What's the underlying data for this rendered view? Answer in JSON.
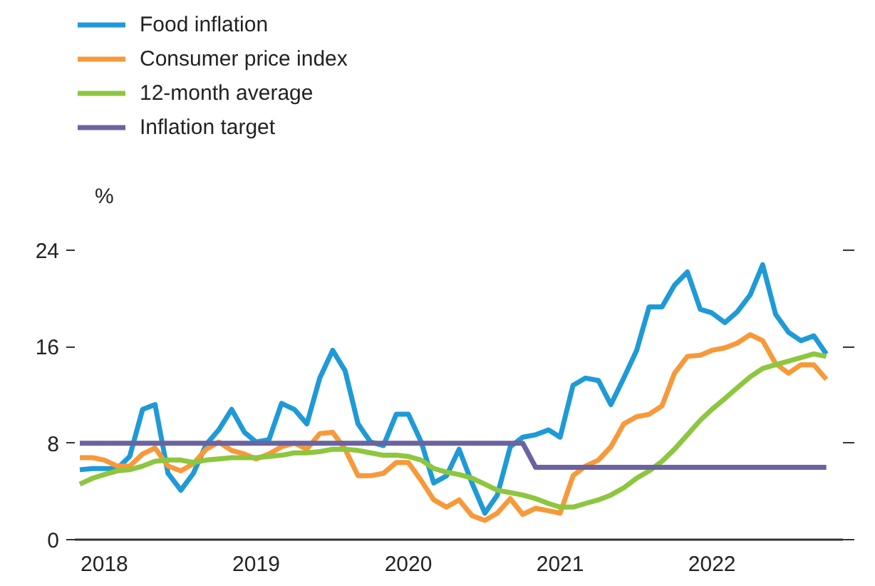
{
  "chart_data": {
    "type": "line",
    "ylabel": "%",
    "legend": "top left",
    "grid": false,
    "line_style": "solid",
    "marker": "none",
    "x": [
      "2018-01",
      "2018-02",
      "2018-03",
      "2018-04",
      "2018-05",
      "2018-06",
      "2018-07",
      "2018-08",
      "2018-09",
      "2018-10",
      "2018-11",
      "2018-12",
      "2019-01",
      "2019-02",
      "2019-03",
      "2019-04",
      "2019-05",
      "2019-06",
      "2019-07",
      "2019-08",
      "2019-09",
      "2019-10",
      "2019-11",
      "2019-12",
      "2020-01",
      "2020-02",
      "2020-03",
      "2020-04",
      "2020-05",
      "2020-06",
      "2020-07",
      "2020-08",
      "2020-09",
      "2020-10",
      "2020-11",
      "2020-12",
      "2021-01",
      "2021-02",
      "2021-03",
      "2021-04",
      "2021-05",
      "2021-06",
      "2021-07",
      "2021-08",
      "2021-09",
      "2021-10",
      "2021-11",
      "2021-12",
      "2022-01",
      "2022-02",
      "2022-03",
      "2022-04",
      "2022-05",
      "2022-06",
      "2022-07",
      "2022-08",
      "2022-09",
      "2022-10",
      "2022-11",
      "2022-12"
    ],
    "xlim": [
      "2017-12-20",
      "2023-01-10"
    ],
    "xticks": [
      {
        "value": "2018-03",
        "label": "2018"
      },
      {
        "value": "2019-03",
        "label": "2019"
      },
      {
        "value": "2020-03",
        "label": "2020"
      },
      {
        "value": "2021-03",
        "label": "2021"
      },
      {
        "value": "2022-03",
        "label": "2022"
      }
    ],
    "ylim": [
      0,
      24
    ],
    "yticks": [
      0,
      8,
      16,
      24
    ],
    "series": [
      {
        "name": "Food inflation",
        "color": "#1f9ad6",
        "values": [
          5.8,
          5.9,
          5.9,
          5.9,
          6.9,
          10.8,
          11.2,
          5.5,
          4.1,
          5.5,
          7.9,
          9.1,
          10.8,
          8.9,
          8.1,
          8.3,
          11.3,
          10.8,
          9.6,
          13.4,
          15.7,
          14.0,
          9.6,
          8.1,
          7.8,
          10.4,
          10.4,
          8.1,
          4.7,
          5.3,
          7.5,
          4.7,
          2.2,
          3.7,
          7.7,
          8.5,
          8.7,
          9.1,
          8.5,
          12.8,
          13.4,
          13.2,
          11.2,
          13.4,
          15.7,
          19.3,
          19.3,
          21.1,
          22.2,
          19.1,
          18.8,
          18.0,
          18.9,
          20.3,
          22.8,
          18.7,
          17.2,
          16.5,
          16.9,
          15.4
        ]
      },
      {
        "name": "Consumer price index",
        "color": "#f7993a",
        "values": [
          6.8,
          6.8,
          6.6,
          6.1,
          6.1,
          7.1,
          7.6,
          6.1,
          5.7,
          6.3,
          7.5,
          8.1,
          7.4,
          7.1,
          6.7,
          7.1,
          7.7,
          8.0,
          7.5,
          8.8,
          8.9,
          7.5,
          5.3,
          5.3,
          5.5,
          6.4,
          6.4,
          4.9,
          3.3,
          2.7,
          3.3,
          2.0,
          1.6,
          2.2,
          3.4,
          2.1,
          2.6,
          2.4,
          2.2,
          5.3,
          6.1,
          6.6,
          7.7,
          9.6,
          10.2,
          10.4,
          11.1,
          13.8,
          15.2,
          15.3,
          15.7,
          15.9,
          16.3,
          17.0,
          16.5,
          14.6,
          13.8,
          14.5,
          14.5,
          13.3
        ]
      },
      {
        "name": "12-month average",
        "color": "#8dc63f",
        "values": [
          4.6,
          5.1,
          5.4,
          5.7,
          5.8,
          6.1,
          6.5,
          6.6,
          6.6,
          6.4,
          6.6,
          6.7,
          6.8,
          6.8,
          6.8,
          6.9,
          7.0,
          7.2,
          7.2,
          7.3,
          7.5,
          7.5,
          7.4,
          7.2,
          7.0,
          7.0,
          6.9,
          6.6,
          5.9,
          5.6,
          5.4,
          5.1,
          4.6,
          4.1,
          3.9,
          3.7,
          3.4,
          3.0,
          2.7,
          2.7,
          3.0,
          3.3,
          3.7,
          4.3,
          5.1,
          5.7,
          6.5,
          7.5,
          8.7,
          9.9,
          10.8,
          11.7,
          12.6,
          13.5,
          14.2,
          14.5,
          14.8,
          15.1,
          15.4,
          15.2
        ]
      },
      {
        "name": "Inflation target",
        "color": "#6b63a0",
        "values": [
          8,
          8,
          8,
          8,
          8,
          8,
          8,
          8,
          8,
          8,
          8,
          8,
          8,
          8,
          8,
          8,
          8,
          8,
          8,
          8,
          8,
          8,
          8,
          8,
          8,
          8,
          8,
          8,
          8,
          8,
          8,
          8,
          8,
          8,
          8,
          8,
          6,
          6,
          6,
          6,
          6,
          6,
          6,
          6,
          6,
          6,
          6,
          6,
          6,
          6,
          6,
          6,
          6,
          6,
          6,
          6,
          6,
          6,
          6,
          6
        ]
      }
    ]
  }
}
